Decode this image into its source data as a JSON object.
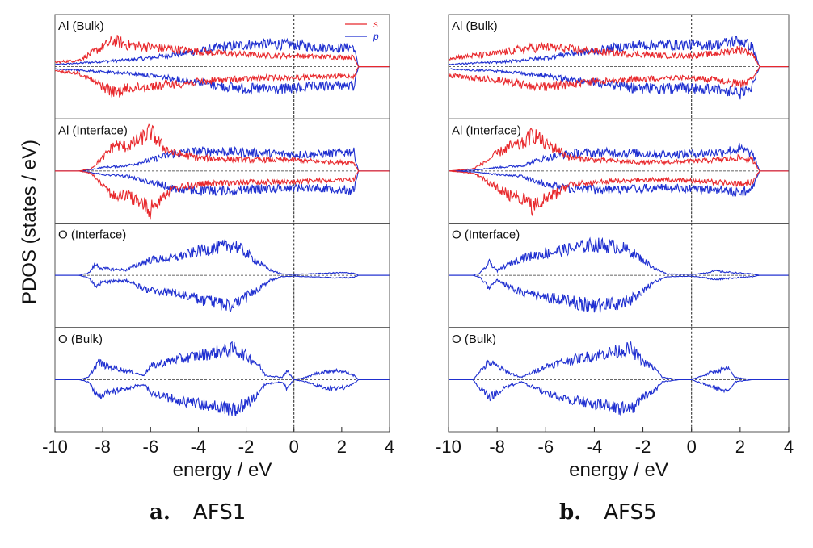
{
  "chart_data": {
    "type": "line",
    "ylabel": "PDOS (states / eV)",
    "xlabel": "energy / eV",
    "xlim": [
      -10,
      4
    ],
    "xticks": [
      -10,
      -8,
      -6,
      -4,
      -2,
      0,
      2,
      4
    ],
    "fermi_level": 0,
    "legend": {
      "placement": "top-right of first panel",
      "entries": [
        {
          "name": "s",
          "color": "#e8282c"
        },
        {
          "name": "p",
          "color": "#1f2fd0"
        }
      ]
    },
    "colors": {
      "s": "#e8282c",
      "p": "#1f2fd0",
      "frame": "#555555",
      "zero_line": "#333333"
    },
    "figures": [
      {
        "label": "a.",
        "name": "AFS1",
        "panels": [
          {
            "title": "Al (Bulk)",
            "series": [
              {
                "name": "s",
                "x": [
                  -10,
                  -9,
                  -8.5,
                  -8,
                  -7.5,
                  -7,
                  -6,
                  -5,
                  -4,
                  -3,
                  -2,
                  -1,
                  0,
                  1,
                  2,
                  2.5,
                  2.7,
                  3,
                  4
                ],
                "values": [
                  0.1,
                  0.15,
                  0.3,
                  0.45,
                  0.6,
                  0.5,
                  0.45,
                  0.4,
                  0.35,
                  0.3,
                  0.28,
                  0.25,
                  0.25,
                  0.23,
                  0.22,
                  0.22,
                  0,
                  0,
                  0
                ]
              },
              {
                "name": "p",
                "x": [
                  -10,
                  -9,
                  -8.5,
                  -8,
                  -7,
                  -6,
                  -5,
                  -4,
                  -3,
                  -2,
                  -1,
                  0,
                  1,
                  2,
                  2.5,
                  2.7,
                  3,
                  4
                ],
                "values": [
                  0.05,
                  0.08,
                  0.1,
                  0.12,
                  0.15,
                  0.2,
                  0.28,
                  0.35,
                  0.45,
                  0.5,
                  0.52,
                  0.5,
                  0.45,
                  0.42,
                  0.45,
                  0,
                  0,
                  0
                ]
              }
            ]
          },
          {
            "title": "Al (Interface)",
            "series": [
              {
                "name": "s",
                "x": [
                  -10,
                  -9,
                  -8.5,
                  -8,
                  -7.5,
                  -7,
                  -6.5,
                  -6,
                  -5.5,
                  -5,
                  -4,
                  -3,
                  -2,
                  -1,
                  0,
                  1,
                  2,
                  2.5,
                  2.7,
                  3,
                  4
                ],
                "values": [
                  0,
                  0,
                  0.05,
                  0.3,
                  0.6,
                  0.55,
                  0.7,
                  0.9,
                  0.55,
                  0.4,
                  0.3,
                  0.28,
                  0.25,
                  0.25,
                  0.25,
                  0.22,
                  0.2,
                  0.2,
                  0,
                  0,
                  0
                ]
              },
              {
                "name": "p",
                "x": [
                  -10,
                  -9,
                  -8.5,
                  -8,
                  -7,
                  -6,
                  -5,
                  -4,
                  -3,
                  -2,
                  -1,
                  0,
                  1,
                  2,
                  2.5,
                  2.7,
                  3,
                  4
                ],
                "values": [
                  0,
                  0,
                  0.03,
                  0.08,
                  0.12,
                  0.25,
                  0.4,
                  0.45,
                  0.45,
                  0.42,
                  0.4,
                  0.38,
                  0.38,
                  0.42,
                  0.45,
                  0,
                  0,
                  0
                ]
              }
            ]
          },
          {
            "title": "O (Interface)",
            "series": [
              {
                "name": "p",
                "x": [
                  -10,
                  -9,
                  -8.6,
                  -8.3,
                  -8,
                  -7,
                  -6.5,
                  -6,
                  -5,
                  -4,
                  -3,
                  -2.5,
                  -2,
                  -1.5,
                  -1,
                  -0.5,
                  0,
                  1,
                  2,
                  2.5,
                  2.7,
                  4
                ],
                "values": [
                  0,
                  0,
                  0.05,
                  0.25,
                  0.15,
                  0.12,
                  0.25,
                  0.35,
                  0.4,
                  0.55,
                  0.65,
                  0.7,
                  0.5,
                  0.3,
                  0.12,
                  0.03,
                  0.02,
                  0.04,
                  0.06,
                  0.05,
                  0,
                  0
                ]
              }
            ]
          },
          {
            "title": "O (Bulk)",
            "series": [
              {
                "name": "p",
                "x": [
                  -10,
                  -9,
                  -8.6,
                  -8.2,
                  -7.8,
                  -7,
                  -6.3,
                  -6,
                  -5,
                  -4,
                  -3,
                  -2.5,
                  -2,
                  -1.5,
                  -1.2,
                  -0.5,
                  -0.3,
                  0,
                  0.5,
                  1,
                  1.5,
                  2,
                  2.5,
                  2.7,
                  4
                ],
                "values": [
                  0,
                  0,
                  0.05,
                  0.4,
                  0.3,
                  0.2,
                  0.1,
                  0.3,
                  0.45,
                  0.55,
                  0.65,
                  0.7,
                  0.55,
                  0.35,
                  0.1,
                  0.05,
                  0.2,
                  0,
                  0.05,
                  0.15,
                  0.2,
                  0.2,
                  0.1,
                  0,
                  0
                ]
              }
            ]
          }
        ]
      },
      {
        "label": "b.",
        "name": "AFS5",
        "panels": [
          {
            "title": "Al (Bulk)",
            "series": [
              {
                "name": "s",
                "x": [
                  -10,
                  -9,
                  -8,
                  -7,
                  -6,
                  -5,
                  -4,
                  -3,
                  -2,
                  -1,
                  0,
                  1,
                  2,
                  2.5,
                  2.8,
                  3,
                  4
                ],
                "values": [
                  0.2,
                  0.25,
                  0.3,
                  0.4,
                  0.45,
                  0.4,
                  0.35,
                  0.3,
                  0.28,
                  0.25,
                  0.25,
                  0.3,
                  0.4,
                  0.3,
                  0,
                  0,
                  0
                ]
              },
              {
                "name": "p",
                "x": [
                  -10,
                  -9,
                  -8,
                  -7,
                  -6,
                  -5,
                  -4,
                  -3,
                  -2,
                  -1,
                  0,
                  1,
                  2,
                  2.5,
                  2.8,
                  3,
                  4
                ],
                "values": [
                  0.05,
                  0.08,
                  0.1,
                  0.15,
                  0.2,
                  0.3,
                  0.35,
                  0.45,
                  0.5,
                  0.5,
                  0.5,
                  0.5,
                  0.6,
                  0.45,
                  0,
                  0,
                  0
                ]
              }
            ]
          },
          {
            "title": "Al (Interface)",
            "series": [
              {
                "name": "s",
                "x": [
                  -10,
                  -9,
                  -8.5,
                  -8,
                  -7.5,
                  -7,
                  -6.5,
                  -6,
                  -5.5,
                  -5,
                  -4,
                  -3,
                  -2,
                  -1,
                  0,
                  1,
                  2,
                  2.5,
                  2.8,
                  4
                ],
                "values": [
                  0,
                  0.05,
                  0.2,
                  0.4,
                  0.55,
                  0.6,
                  0.85,
                  0.6,
                  0.5,
                  0.3,
                  0.25,
                  0.22,
                  0.2,
                  0.2,
                  0.22,
                  0.25,
                  0.3,
                  0.25,
                  0,
                  0
                ]
              },
              {
                "name": "p",
                "x": [
                  -10,
                  -9,
                  -8.5,
                  -8,
                  -7,
                  -6,
                  -5,
                  -4,
                  -3,
                  -2,
                  -1,
                  0,
                  1,
                  2,
                  2.5,
                  2.8,
                  4
                ],
                "values": [
                  0,
                  0.02,
                  0.05,
                  0.08,
                  0.12,
                  0.3,
                  0.4,
                  0.42,
                  0.42,
                  0.4,
                  0.38,
                  0.4,
                  0.42,
                  0.5,
                  0.4,
                  0,
                  0
                ]
              }
            ]
          },
          {
            "title": "O (Interface)",
            "series": [
              {
                "name": "p",
                "x": [
                  -10,
                  -9,
                  -8.7,
                  -8.3,
                  -8,
                  -7.7,
                  -7,
                  -6,
                  -5,
                  -4,
                  -3,
                  -2.5,
                  -2,
                  -1.5,
                  -1,
                  0,
                  0.5,
                  1,
                  1.3,
                  2,
                  2.5,
                  2.8,
                  4
                ],
                "values": [
                  0,
                  0,
                  0.05,
                  0.3,
                  0.1,
                  0.2,
                  0.4,
                  0.5,
                  0.6,
                  0.7,
                  0.65,
                  0.55,
                  0.35,
                  0.15,
                  0.03,
                  0.02,
                  0.05,
                  0.1,
                  0.08,
                  0.05,
                  0.03,
                  0,
                  0
                ]
              }
            ]
          },
          {
            "title": "O (Bulk)",
            "series": [
              {
                "name": "p",
                "x": [
                  -10,
                  -9,
                  -8.7,
                  -8.3,
                  -8,
                  -7.5,
                  -7,
                  -6,
                  -5,
                  -4,
                  -3,
                  -2.5,
                  -2,
                  -1.5,
                  -1.2,
                  -0.5,
                  0,
                  0.5,
                  1,
                  1.5,
                  1.8,
                  2.5,
                  4
                ],
                "values": [
                  0,
                  0,
                  0.2,
                  0.4,
                  0.3,
                  0.15,
                  0.05,
                  0.3,
                  0.45,
                  0.55,
                  0.65,
                  0.7,
                  0.4,
                  0.25,
                  0.05,
                  0,
                  0,
                  0.1,
                  0.2,
                  0.25,
                  0.05,
                  0,
                  0
                ]
              }
            ]
          }
        ]
      }
    ]
  }
}
